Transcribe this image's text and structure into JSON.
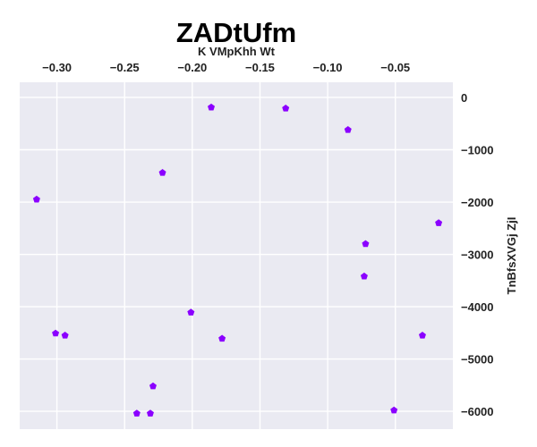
{
  "chart_data": {
    "type": "scatter",
    "title": "ZADtUfm",
    "xlabel": "K VMpKhh  Wt",
    "ylabel": "TnBfsXVGj ZjI",
    "x_axis_position": "top",
    "y_axis_position": "right",
    "grid": true,
    "legend": "none",
    "xlim": [
      -0.3275,
      -0.0075
    ],
    "ylim": [
      -6340,
      290
    ],
    "x_ticks": [
      -0.3,
      -0.25,
      -0.2,
      -0.15,
      -0.1,
      -0.05
    ],
    "x_tick_labels": [
      "−0.30",
      "−0.25",
      "−0.20",
      "−0.15",
      "−0.10",
      "−0.05"
    ],
    "y_ticks": [
      0,
      -1000,
      -2000,
      -3000,
      -4000,
      -5000,
      -6000
    ],
    "y_tick_labels": [
      "0",
      "−1000",
      "−2000",
      "−3000",
      "−4000",
      "−5000",
      "−6000"
    ],
    "series": [
      {
        "marker": "pentagon",
        "color": "#8b00ff",
        "x": [
          -0.186,
          -0.131,
          -0.085,
          -0.222,
          -0.315,
          -0.018,
          -0.072,
          -0.073,
          -0.201,
          -0.301,
          -0.294,
          -0.178,
          -0.03,
          -0.229,
          -0.241,
          -0.231,
          -0.051
        ],
        "y": [
          -190,
          -210,
          -620,
          -1440,
          -1950,
          -2400,
          -2800,
          -3420,
          -4110,
          -4510,
          -4550,
          -4610,
          -4550,
          -5520,
          -6040,
          -6040,
          -5980
        ]
      }
    ]
  }
}
